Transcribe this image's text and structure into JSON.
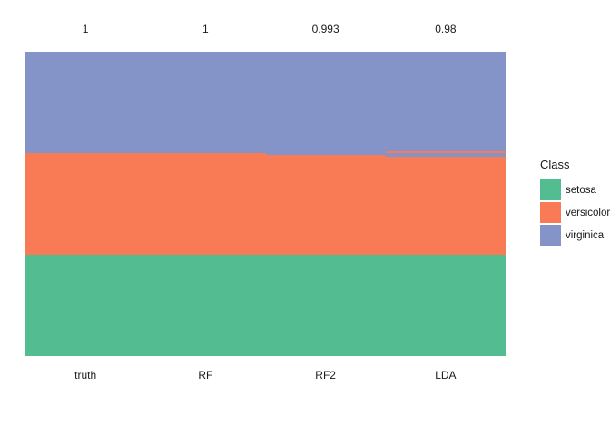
{
  "figure": {
    "background": "#ffffff"
  },
  "chart_data": {
    "type": "bar",
    "subtype": "stacked-classification-columns",
    "title": "",
    "xlabel": "",
    "ylabel": "",
    "grid": false,
    "y_axis": "hidden",
    "samples_per_column": 150,
    "categories": [
      "truth",
      "RF",
      "RF2",
      "LDA"
    ],
    "accuracy_labels": [
      "1",
      "1",
      "0.993",
      "0.98"
    ],
    "classes": [
      "setosa",
      "versicolor",
      "virginica"
    ],
    "colors": {
      "setosa": "#53bc90",
      "versicolor": "#f97b56",
      "virginica": "#8494c8"
    },
    "columns": [
      {
        "label": "truth",
        "accuracy": "1",
        "segments_top_to_bottom": [
          {
            "class": "virginica",
            "n": 50
          },
          {
            "class": "versicolor",
            "n": 50
          },
          {
            "class": "setosa",
            "n": 50
          }
        ]
      },
      {
        "label": "RF",
        "accuracy": "1",
        "segments_top_to_bottom": [
          {
            "class": "virginica",
            "n": 50
          },
          {
            "class": "versicolor",
            "n": 50
          },
          {
            "class": "setosa",
            "n": 50
          }
        ]
      },
      {
        "label": "RF2",
        "accuracy": "0.993",
        "segments_top_to_bottom": [
          {
            "class": "virginica",
            "n": 51
          },
          {
            "class": "versicolor",
            "n": 49
          },
          {
            "class": "setosa",
            "n": 50
          }
        ]
      },
      {
        "label": "LDA",
        "accuracy": "0.98",
        "segments_top_to_bottom": [
          {
            "class": "virginica",
            "n": 49
          },
          {
            "class": "versicolor",
            "n": 1
          },
          {
            "class": "virginica",
            "n": 2
          },
          {
            "class": "versicolor",
            "n": 48
          },
          {
            "class": "setosa",
            "n": 50
          }
        ]
      }
    ],
    "legend": {
      "title": "Class",
      "entries": [
        "setosa",
        "versicolor",
        "virginica"
      ],
      "position": "right"
    }
  }
}
